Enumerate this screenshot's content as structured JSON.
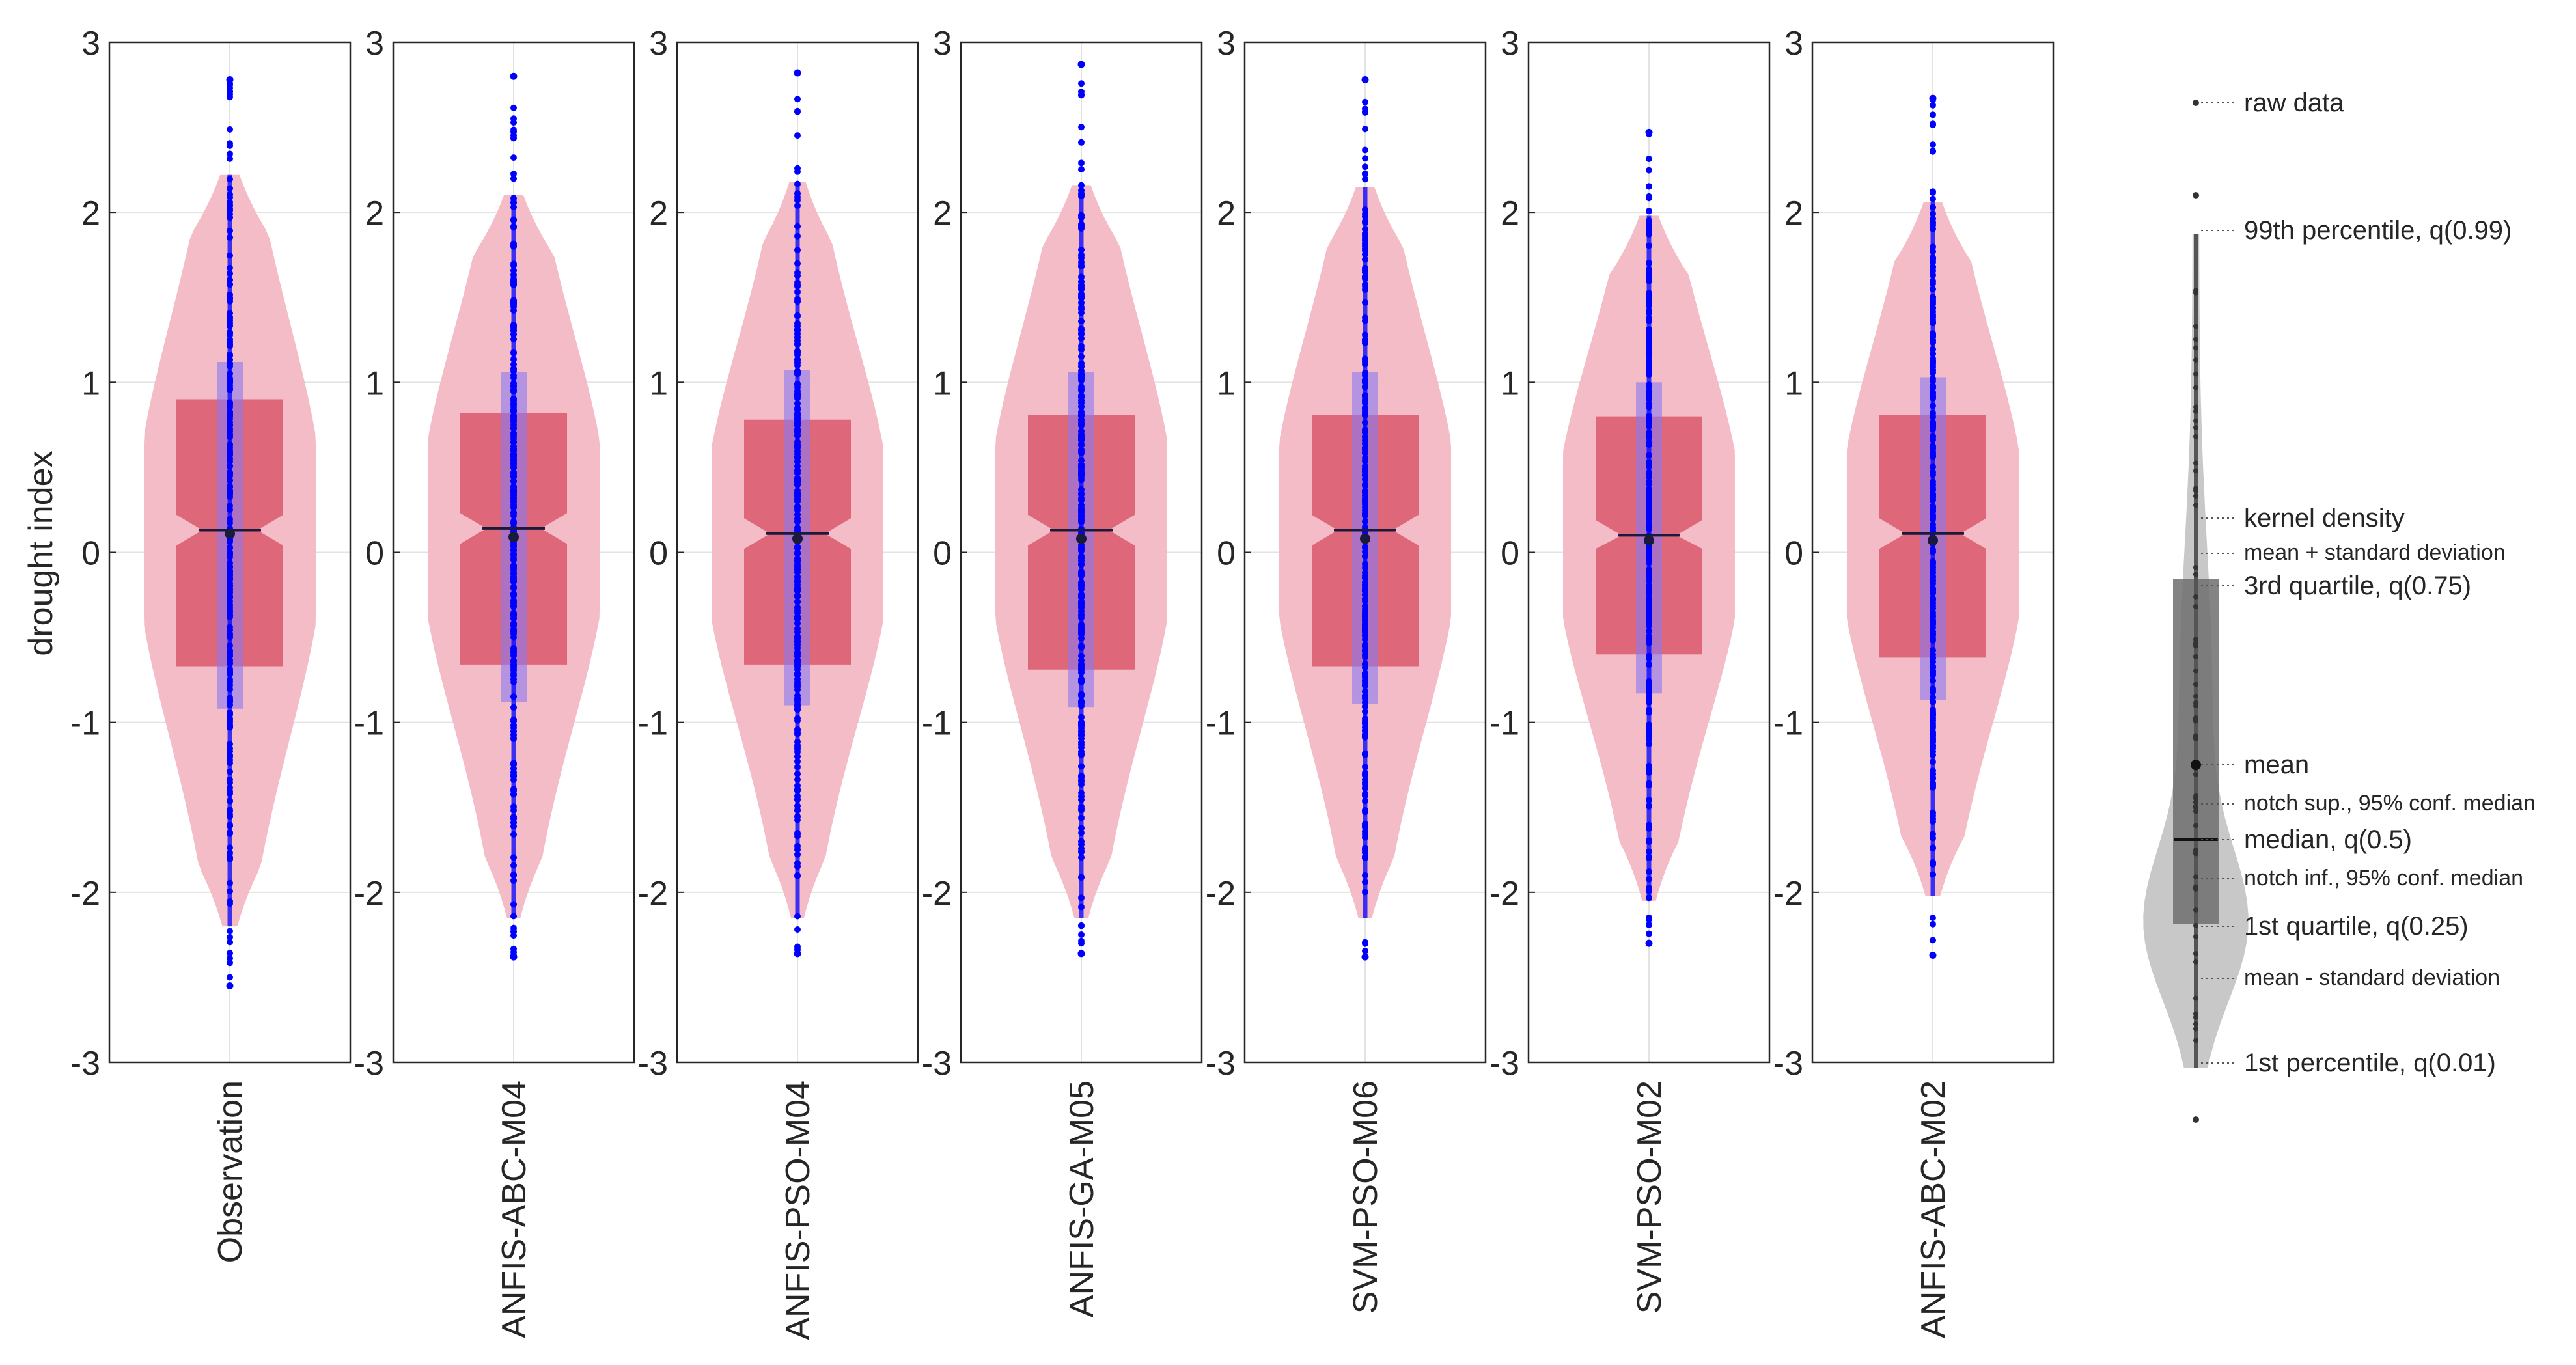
{
  "chart_data": {
    "type": "violin",
    "ylabel": "drought index",
    "ylim": [
      -3,
      3
    ],
    "yticks": [
      -3,
      -2,
      -1,
      0,
      1,
      2,
      3
    ],
    "ytick_labels": [
      "-3",
      "-2",
      "-1",
      "0",
      "1",
      "2",
      "3"
    ],
    "grid": true,
    "colors": {
      "violin": "#f2b8c4",
      "box": "#dc5f73",
      "std_band": "#8a78f0",
      "raw_points": "#0000ff",
      "median_line": "#1a1a3c",
      "legend_violin": "#c8c8c8",
      "legend_box": "#6e6e6e"
    },
    "series": [
      {
        "name": "Observation",
        "q01": -2.2,
        "q25": -0.67,
        "median": 0.13,
        "q75": 0.9,
        "q99": 2.22,
        "mean": 0.11,
        "std_low": -0.92,
        "std_high": 1.12,
        "notch_low": 0.04,
        "notch_high": 0.22,
        "min": -2.55,
        "max": 2.78
      },
      {
        "name": "ANFIS-ABC-M04",
        "q01": -2.15,
        "q25": -0.66,
        "median": 0.14,
        "q75": 0.82,
        "q99": 2.1,
        "mean": 0.09,
        "std_low": -0.88,
        "std_high": 1.06,
        "notch_low": 0.05,
        "notch_high": 0.23,
        "min": -2.38,
        "max": 2.8
      },
      {
        "name": "ANFIS-PSO-M04",
        "q01": -2.15,
        "q25": -0.66,
        "median": 0.11,
        "q75": 0.78,
        "q99": 2.18,
        "mean": 0.08,
        "std_low": -0.9,
        "std_high": 1.07,
        "notch_low": 0.02,
        "notch_high": 0.2,
        "min": -2.36,
        "max": 2.82
      },
      {
        "name": "ANFIS-GA-M05",
        "q01": -2.15,
        "q25": -0.69,
        "median": 0.13,
        "q75": 0.81,
        "q99": 2.16,
        "mean": 0.08,
        "std_low": -0.91,
        "std_high": 1.06,
        "notch_low": 0.04,
        "notch_high": 0.22,
        "min": -2.36,
        "max": 2.87
      },
      {
        "name": "SVM-PSO-M06",
        "q01": -2.15,
        "q25": -0.67,
        "median": 0.13,
        "q75": 0.81,
        "q99": 2.15,
        "mean": 0.08,
        "std_low": -0.89,
        "std_high": 1.06,
        "notch_low": 0.04,
        "notch_high": 0.22,
        "min": -2.38,
        "max": 2.78
      },
      {
        "name": "SVM-PSO-M02",
        "q01": -2.05,
        "q25": -0.6,
        "median": 0.1,
        "q75": 0.8,
        "q99": 1.98,
        "mean": 0.07,
        "std_low": -0.83,
        "std_high": 1.0,
        "notch_low": 0.02,
        "notch_high": 0.19,
        "min": -2.3,
        "max": 2.47
      },
      {
        "name": "ANFIS-ABC-M02",
        "q01": -2.02,
        "q25": -0.62,
        "median": 0.11,
        "q75": 0.81,
        "q99": 2.06,
        "mean": 0.07,
        "std_low": -0.87,
        "std_high": 1.03,
        "notch_low": 0.02,
        "notch_high": 0.2,
        "min": -2.37,
        "max": 2.67
      }
    ],
    "legend": {
      "title": "",
      "items": [
        "raw data",
        "99th percentile, q(0.99)",
        "kernel density",
        "mean + standard deviation",
        "3rd quartile, q(0.75)",
        "mean",
        "notch sup., 95% conf. median",
        "median, q(0.5)",
        "notch inf., 95% conf. median",
        "1st quartile, q(0.25)",
        "mean - standard deviation",
        "1st percentile, q(0.01)"
      ]
    }
  }
}
